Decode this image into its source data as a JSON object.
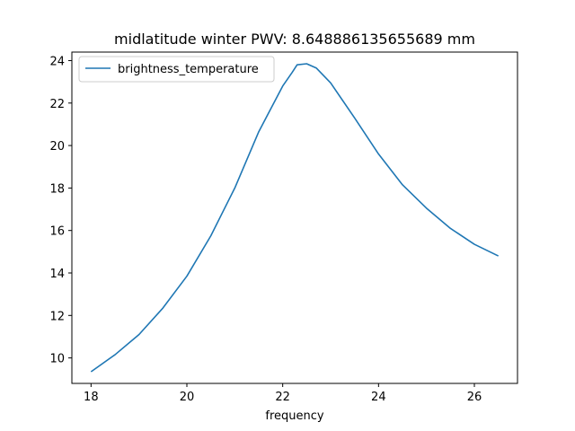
{
  "chart_data": {
    "type": "line",
    "title": "midlatitude winter PWV: 8.648886135655689 mm",
    "xlabel": "frequency",
    "ylabel": "",
    "xlim": [
      17.6,
      26.9
    ],
    "ylim": [
      8.8,
      24.4
    ],
    "xticks": [
      18,
      20,
      22,
      24,
      26
    ],
    "yticks": [
      10,
      12,
      14,
      16,
      18,
      20,
      22,
      24
    ],
    "grid": false,
    "legend_position": "top-left",
    "color": "#1f77b4",
    "series": [
      {
        "name": "brightness_temperature",
        "x": [
          18.0,
          18.5,
          19.0,
          19.5,
          20.0,
          20.5,
          21.0,
          21.5,
          22.0,
          22.2,
          22.3,
          22.5,
          22.7,
          23.0,
          23.5,
          24.0,
          24.5,
          25.0,
          25.5,
          26.0,
          26.5
        ],
        "y": [
          9.35,
          10.15,
          11.1,
          12.35,
          13.85,
          15.75,
          18.0,
          20.65,
          22.8,
          23.45,
          23.8,
          23.85,
          23.65,
          22.95,
          21.3,
          19.6,
          18.15,
          17.05,
          16.1,
          15.35,
          14.8
        ]
      }
    ]
  }
}
